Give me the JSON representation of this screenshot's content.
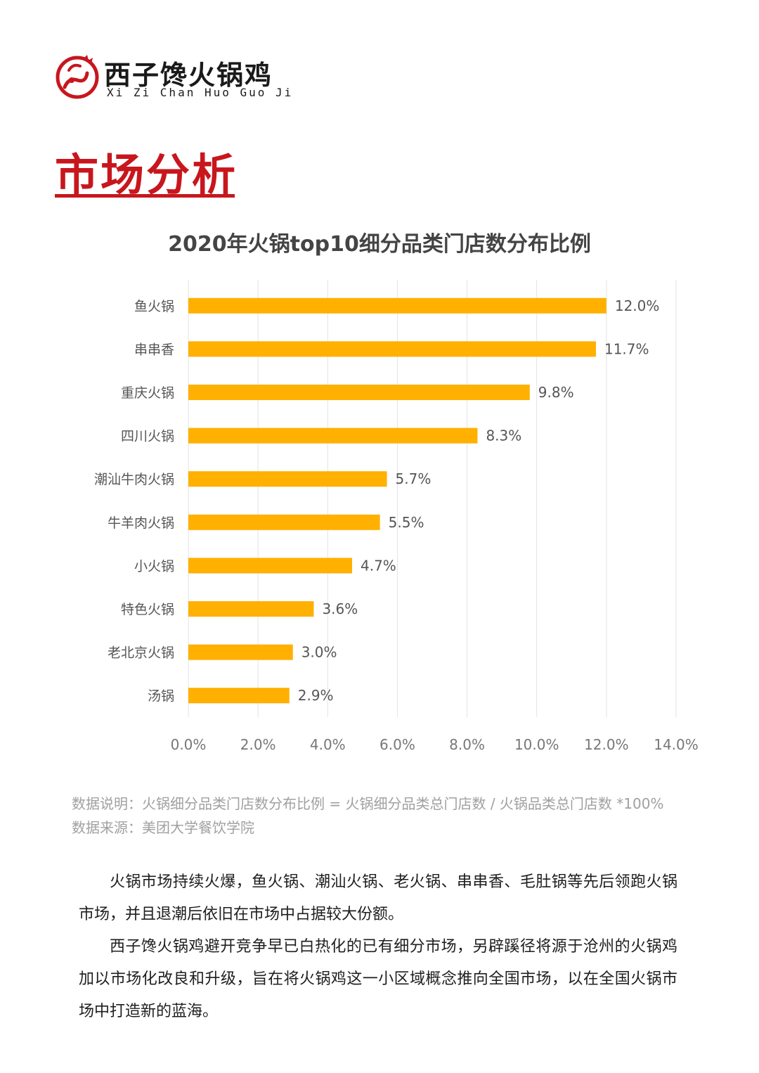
{
  "brand": {
    "name_cn": "西子馋火锅鸡",
    "name_en": "Xi Zi Chan Huo Guo Ji",
    "logo_icon": "rooster-cloud-emblem-icon",
    "colors": {
      "brand_red": "#c8161d",
      "bar": "#ffb000"
    }
  },
  "section": {
    "title": "市场分析"
  },
  "chart_data": {
    "type": "bar",
    "orientation": "horizontal",
    "title": "2020年火锅top10细分品类门店数分布比例",
    "categories": [
      "鱼火锅",
      "串串香",
      "重庆火锅",
      "四川火锅",
      "潮汕牛肉火锅",
      "牛羊肉火锅",
      "小火锅",
      "特色火锅",
      "老北京火锅",
      "汤锅"
    ],
    "values": [
      12.0,
      11.7,
      9.8,
      8.3,
      5.7,
      5.5,
      4.7,
      3.6,
      3.0,
      2.9
    ],
    "value_labels": [
      "12.0%",
      "11.7%",
      "9.8%",
      "8.3%",
      "5.7%",
      "5.5%",
      "4.7%",
      "3.6%",
      "3.0%",
      "2.9%"
    ],
    "xlim": [
      0,
      14
    ],
    "xticks": [
      0,
      2,
      4,
      6,
      8,
      10,
      12,
      14
    ],
    "xtick_labels": [
      "0.0%",
      "2.0%",
      "4.0%",
      "6.0%",
      "8.0%",
      "10.0%",
      "12.0%",
      "14.0%"
    ],
    "grid": true,
    "bar_color": "#ffb000"
  },
  "notes": {
    "definition": "数据说明：火锅细分品类门店数分布比例 = 火锅细分品类总门店数 / 火锅品类总门店数 *100%",
    "source": "数据来源：美团大学餐饮学院"
  },
  "body": {
    "paragraph_1": "火锅市场持续火爆，鱼火锅、潮汕火锅、老火锅、串串香、毛肚锅等先后领跑火锅市场，并且退潮后依旧在市场中占据较大份额。",
    "paragraph_2": "西子馋火锅鸡避开竞争早已白热化的已有细分市场，另辟蹊径将源于沧州的火锅鸡加以市场化改良和升级，旨在将火锅鸡这一小区域概念推向全国市场，以在全国火锅市场中打造新的蓝海。"
  }
}
